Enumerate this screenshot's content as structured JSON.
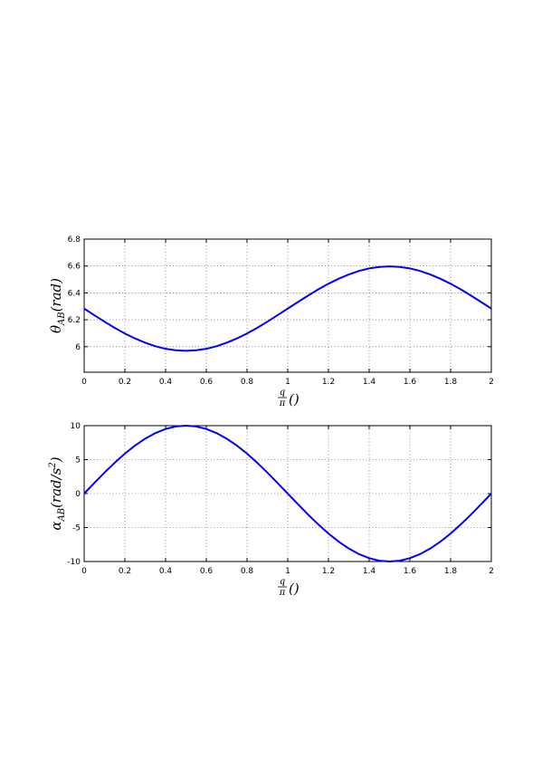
{
  "chart_data": [
    {
      "type": "line",
      "ylabel": {
        "base": "θ",
        "sub": "AB",
        "text": "(rad)"
      },
      "xlabel": {
        "numerator": "q",
        "denominator": "π",
        "text": "()"
      },
      "x": [
        0,
        0.05,
        0.1,
        0.15,
        0.2,
        0.25,
        0.3,
        0.35,
        0.4,
        0.45,
        0.5,
        0.55,
        0.6,
        0.65,
        0.7,
        0.75,
        0.8,
        0.85,
        0.9,
        0.95,
        1,
        1.05,
        1.1,
        1.15,
        1.2,
        1.25,
        1.3,
        1.35,
        1.4,
        1.45,
        1.5,
        1.55,
        1.6,
        1.65,
        1.7,
        1.75,
        1.8,
        1.85,
        1.9,
        1.95,
        2
      ],
      "values": [
        6.283,
        6.234,
        6.186,
        6.14,
        6.098,
        6.061,
        6.029,
        6.003,
        5.984,
        5.973,
        5.969,
        5.973,
        5.984,
        6.003,
        6.029,
        6.061,
        6.098,
        6.14,
        6.186,
        6.234,
        6.283,
        6.332,
        6.38,
        6.426,
        6.468,
        6.505,
        6.537,
        6.563,
        6.582,
        6.593,
        6.597,
        6.593,
        6.582,
        6.563,
        6.537,
        6.505,
        6.468,
        6.426,
        6.38,
        6.332,
        6.283
      ],
      "color": "#0000ff",
      "xlim": [
        0,
        2
      ],
      "xticks": [
        0,
        0.2,
        0.4,
        0.6,
        0.8,
        1,
        1.2,
        1.4,
        1.6,
        1.8,
        2
      ],
      "ylim": [
        5.81,
        6.8
      ],
      "yticks": [
        6,
        6.2,
        6.4,
        6.6,
        6.8
      ],
      "grid": true
    },
    {
      "type": "line",
      "ylabel": {
        "base": "α",
        "sub": "AB",
        "text": "(rad/s",
        "sup": "2",
        "end": ")"
      },
      "xlabel": {
        "numerator": "q",
        "denominator": "π",
        "text": "()"
      },
      "x": [
        0,
        0.05,
        0.1,
        0.15,
        0.2,
        0.25,
        0.3,
        0.35,
        0.4,
        0.45,
        0.5,
        0.55,
        0.6,
        0.65,
        0.7,
        0.75,
        0.8,
        0.85,
        0.9,
        0.95,
        1,
        1.05,
        1.1,
        1.15,
        1.2,
        1.25,
        1.3,
        1.35,
        1.4,
        1.45,
        1.5,
        1.55,
        1.6,
        1.65,
        1.7,
        1.75,
        1.8,
        1.85,
        1.9,
        1.95,
        2
      ],
      "values": [
        0,
        1.56,
        3.09,
        4.54,
        5.88,
        7.07,
        8.09,
        8.91,
        9.51,
        9.88,
        10,
        9.88,
        9.51,
        8.91,
        8.09,
        7.07,
        5.88,
        4.54,
        3.09,
        1.56,
        0,
        -1.56,
        -3.09,
        -4.54,
        -5.88,
        -7.07,
        -8.09,
        -8.91,
        -9.51,
        -9.88,
        -10,
        -9.88,
        -9.51,
        -8.91,
        -8.09,
        -7.07,
        -5.88,
        -4.54,
        -3.09,
        -1.56,
        0
      ],
      "color": "#0000ff",
      "xlim": [
        0,
        2
      ],
      "xticks": [
        0,
        0.2,
        0.4,
        0.6,
        0.8,
        1,
        1.2,
        1.4,
        1.6,
        1.8,
        2
      ],
      "ylim": [
        -10,
        10
      ],
      "yticks": [
        -10,
        -5,
        0,
        5,
        10
      ],
      "grid": true
    }
  ]
}
